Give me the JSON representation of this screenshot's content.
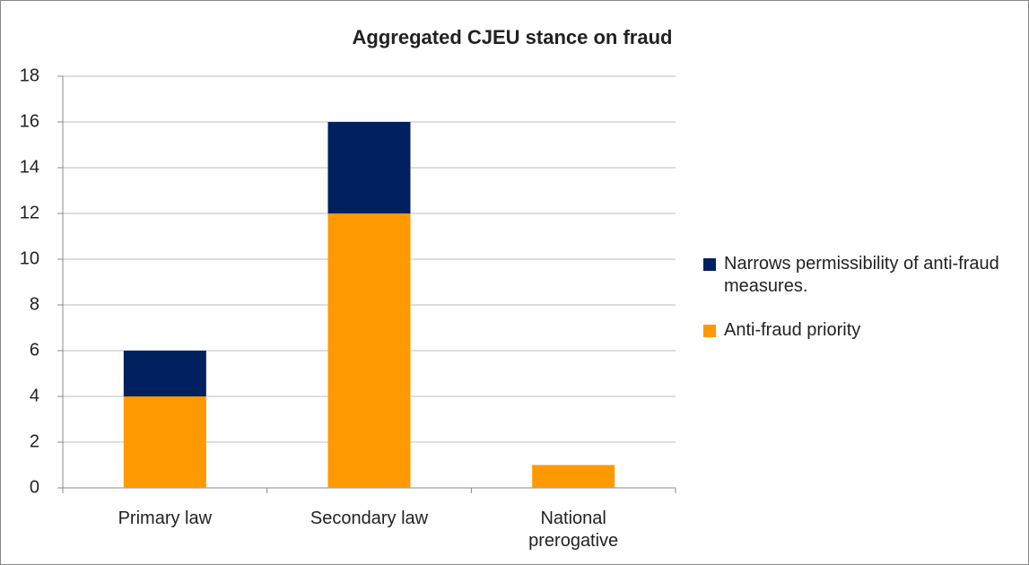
{
  "chart_data": {
    "type": "stacked_bar",
    "title": "Aggregated CJEU stance on fraud",
    "categories": [
      "Primary law",
      "Secondary law",
      "National prerogative"
    ],
    "series": [
      {
        "name": "Anti-fraud priority",
        "color": "#ff9900",
        "values": [
          4,
          12,
          1
        ]
      },
      {
        "name": "Narrows permissibility of anti-fraud measures.",
        "color": "#002060",
        "values": [
          2,
          4,
          0
        ]
      }
    ],
    "ylim": [
      0,
      18
    ],
    "yticks": [
      0,
      2,
      4,
      6,
      8,
      10,
      12,
      14,
      16,
      18
    ],
    "grid": true,
    "legend": "right"
  }
}
